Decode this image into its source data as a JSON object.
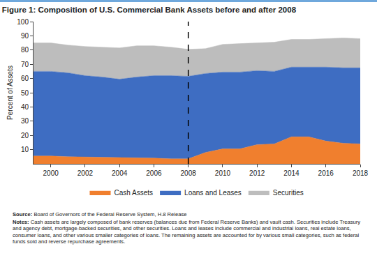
{
  "chart_data": {
    "type": "area",
    "stacked": true,
    "title": "Figure 1: Composition of U.S. Commercial Bank Assets before and after 2008",
    "y_label": "Percent of Assets",
    "x": [
      1999,
      2000,
      2001,
      2002,
      2003,
      2004,
      2005,
      2006,
      2007,
      2008,
      2009,
      2010,
      2011,
      2012,
      2013,
      2014,
      2015,
      2016,
      2017,
      2018
    ],
    "series": [
      {
        "name": "Cash Assets",
        "color": "#f07f2e",
        "values": [
          5.5,
          5.5,
          5,
          4.8,
          4.7,
          4.5,
          4.2,
          4,
          3.5,
          3.5,
          8,
          10.5,
          10.5,
          13.5,
          14,
          19,
          19,
          16,
          14.5,
          14
        ]
      },
      {
        "name": "Loans and Leases",
        "color": "#3e6dc2",
        "values": [
          59.5,
          59.5,
          59,
          57.2,
          56.3,
          55,
          56.8,
          58,
          58.5,
          58,
          55.5,
          54,
          54,
          52,
          51,
          49,
          49,
          52,
          53,
          53.5
        ]
      },
      {
        "name": "Securities",
        "color": "#bdbdbd",
        "values": [
          20,
          20,
          19.5,
          20.5,
          21,
          22,
          22,
          21,
          20,
          19,
          17.5,
          19.5,
          20,
          19.5,
          20.5,
          19.5,
          19.5,
          20,
          21,
          20.5
        ]
      }
    ],
    "xlim": [
      1999,
      2018
    ],
    "xticks": [
      2000,
      2002,
      2004,
      2006,
      2008,
      2010,
      2012,
      2014,
      2016,
      2018
    ],
    "ylim": [
      0,
      100
    ],
    "yticks": [
      10,
      20,
      30,
      40,
      50,
      60,
      70,
      80,
      90,
      100
    ],
    "grid": false,
    "legend": "bottom",
    "reference_x": 2008,
    "source": "Source: Board of Governors of the Federal Reserve System, H.8 Release",
    "notes": "Notes: Cash assets are largely composed of bank reserves (balances due from Federal Reserve Banks) and vault cash. Securities include Treasury and agency debt, mortgage-backed securities, and other securities. Loans and leases include commercial and industrial loans, real estate loans, consumer loans, and other various smaller categories of loans. The remaining assets are accounted for by various small categories, such as federal funds sold and reverse repurchase agreements."
  }
}
